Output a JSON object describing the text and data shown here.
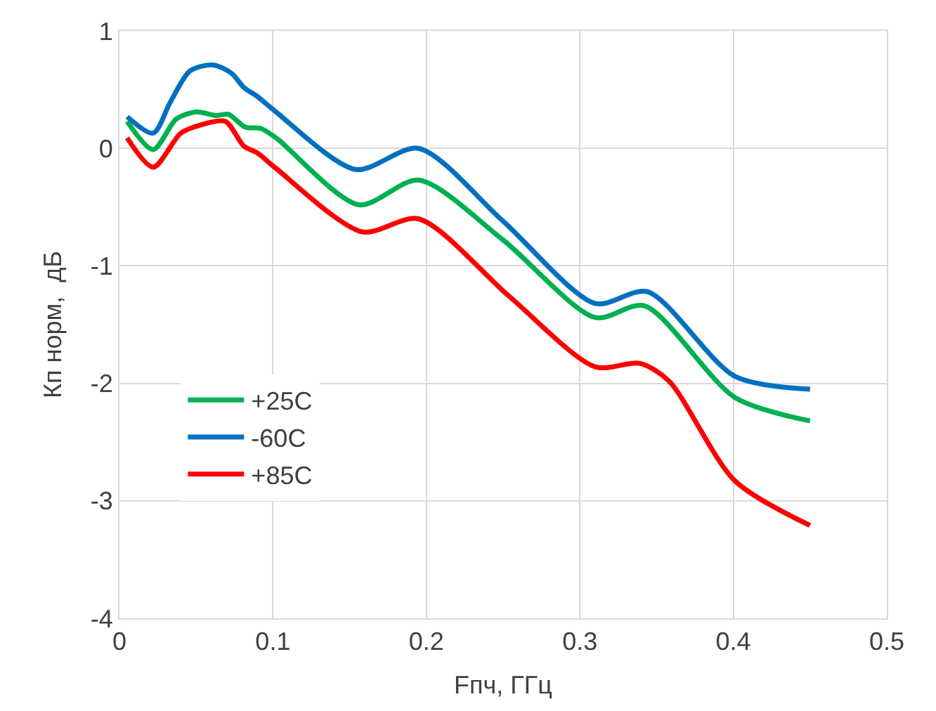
{
  "chart_data": {
    "type": "line",
    "xlabel": "Fпч, ГГц",
    "ylabel": "Кп норм,  дБ",
    "xlim": [
      0,
      0.5
    ],
    "xticks": [
      0,
      0.1,
      0.2,
      0.3,
      0.4,
      0.5
    ],
    "ylim": [
      -4,
      1
    ],
    "yticks": [
      -4,
      -3,
      -2,
      -1,
      0,
      1
    ],
    "grid": true,
    "legend": "bottom left",
    "marker": "none",
    "line_style": "solid",
    "series": [
      {
        "name": "+25C",
        "color": "#00b050",
        "x": [
          0.005,
          0.022,
          0.037,
          0.05,
          0.063,
          0.071,
          0.082,
          0.092,
          0.102,
          0.156,
          0.195,
          0.25,
          0.31,
          0.342,
          0.401,
          0.45
        ],
        "values": [
          0.23,
          -0.01,
          0.25,
          0.31,
          0.28,
          0.29,
          0.18,
          0.17,
          0.09,
          -0.48,
          -0.27,
          -0.78,
          -1.44,
          -1.34,
          -2.12,
          -2.32
        ]
      },
      {
        "name": "-60C",
        "color": "#0070c0",
        "x": [
          0.005,
          0.022,
          0.033,
          0.046,
          0.061,
          0.073,
          0.081,
          0.09,
          0.102,
          0.154,
          0.195,
          0.25,
          0.31,
          0.344,
          0.401,
          0.45
        ],
        "values": [
          0.27,
          0.13,
          0.39,
          0.66,
          0.71,
          0.64,
          0.52,
          0.44,
          0.31,
          -0.18,
          0.0,
          -0.62,
          -1.32,
          -1.22,
          -1.94,
          -2.05
        ]
      },
      {
        "name": "+85C",
        "color": "#ff0000",
        "x": [
          0.005,
          0.022,
          0.04,
          0.053,
          0.069,
          0.081,
          0.09,
          0.102,
          0.158,
          0.195,
          0.254,
          0.31,
          0.339,
          0.358,
          0.401,
          0.45
        ],
        "values": [
          0.09,
          -0.16,
          0.13,
          0.2,
          0.23,
          0.02,
          -0.04,
          -0.17,
          -0.71,
          -0.6,
          -1.26,
          -1.86,
          -1.83,
          -1.98,
          -2.83,
          -3.21
        ]
      }
    ]
  }
}
